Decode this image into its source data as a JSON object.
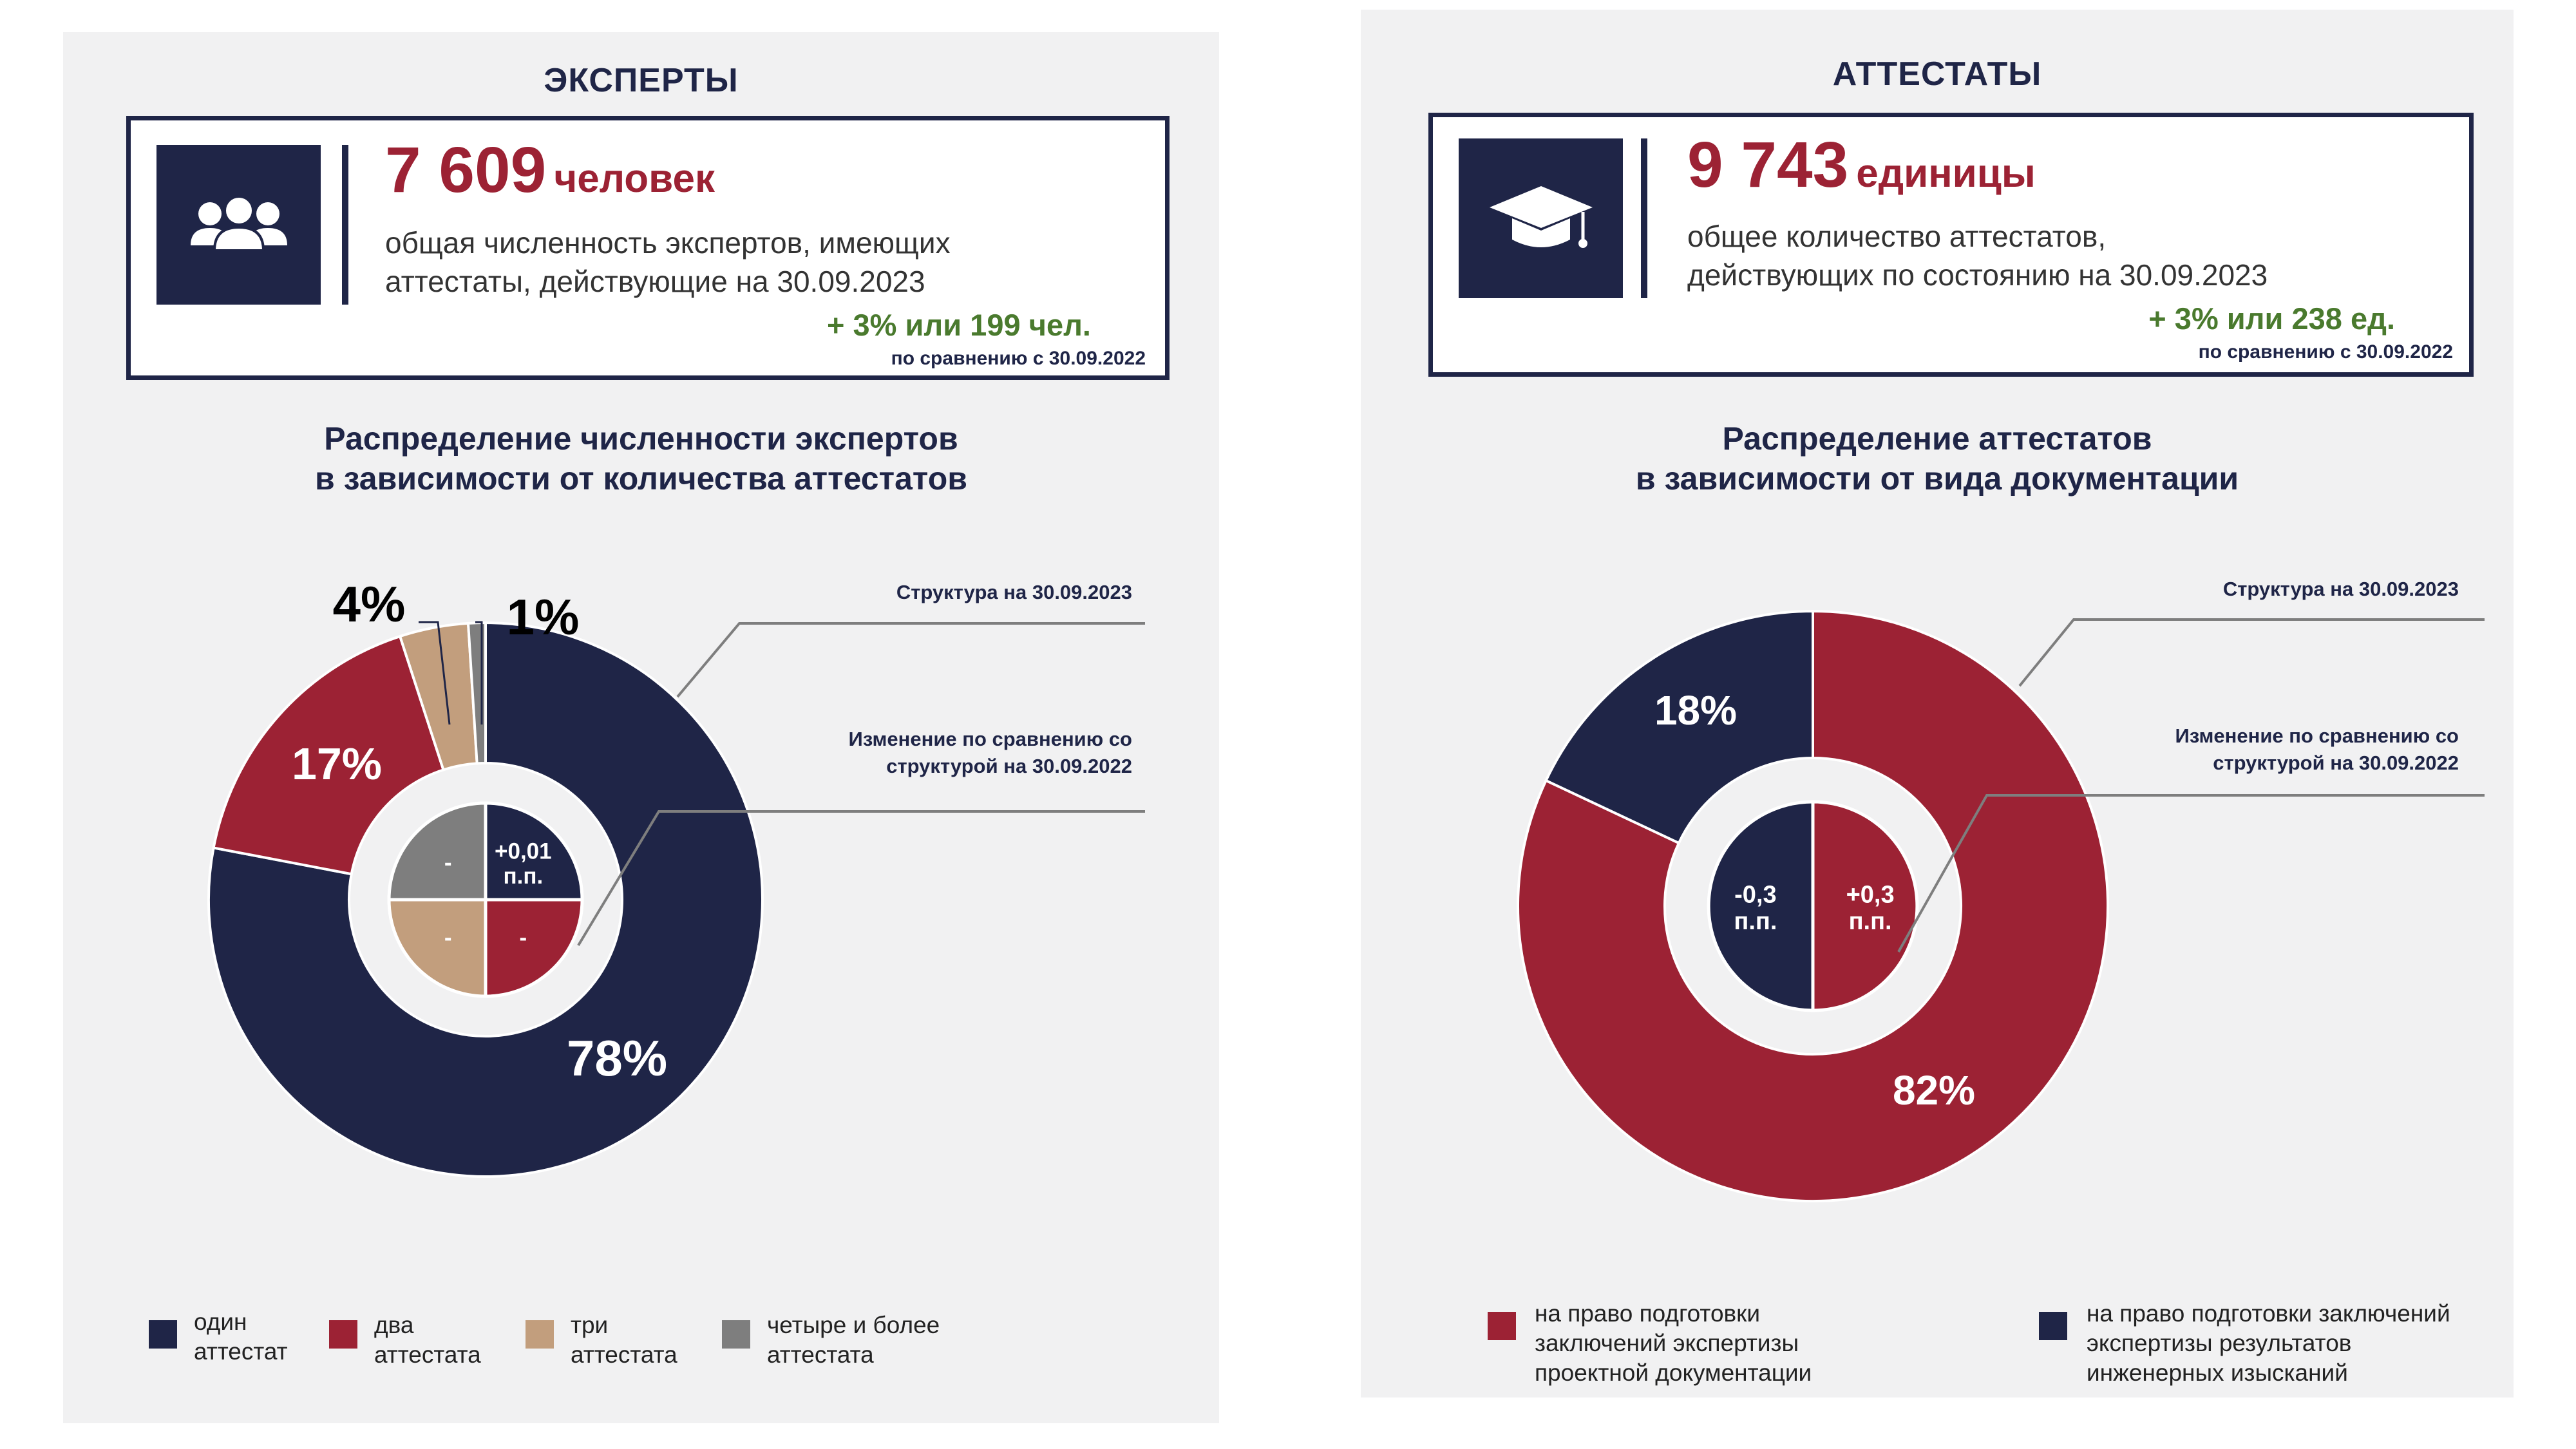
{
  "colors": {
    "navy": "#1f2547",
    "crimson": "#9c2234",
    "tan": "#c29e7d",
    "gray": "#7e7e7e",
    "green": "#4a7a2e",
    "panel_bg": "#f1f1f2"
  },
  "left": {
    "heading": "ЭКСПЕРТЫ",
    "icon": "people-group-icon",
    "stat_number": "7 609",
    "stat_unit": "человек",
    "stat_desc_line1": "общая численность экспертов, имеющих",
    "stat_desc_line2": "аттестаты, действующие на 30.09.2023",
    "stat_change": "+ 3% или 199 чел.",
    "stat_compare": "по сравнению  с 30.09.2022",
    "chart_title_line1": "Распределение численности экспертов",
    "chart_title_line2": "в зависимости от количества аттестатов",
    "callout_structure": "Структура на 30.09.2023",
    "callout_change_line1": "Изменение по сравнению со",
    "callout_change_line2": "структурой на 30.09.2022",
    "legend": [
      {
        "line1": "один",
        "line2": "аттестат",
        "color": "#1f2547"
      },
      {
        "line1": "два",
        "line2": "аттестата",
        "color": "#9c2234"
      },
      {
        "line1": "три",
        "line2": "аттестата",
        "color": "#c29e7d"
      },
      {
        "line1": "четыре и более",
        "line2": "аттестата",
        "color": "#7e7e7e"
      }
    ]
  },
  "right": {
    "heading": "АТТЕСТАТЫ",
    "icon": "graduation-cap-icon",
    "stat_number": "9 743",
    "stat_unit": "единицы",
    "stat_desc_line1": "общее количество аттестатов,",
    "stat_desc_line2": "действующих по состоянию на 30.09.2023",
    "stat_change": "+ 3% или 238 ед.",
    "stat_compare": "по сравнению  с 30.09.2022",
    "chart_title_line1": "Распределение аттестатов",
    "chart_title_line2": "в зависимости от вида документации",
    "callout_structure": "Структура на 30.09.2023",
    "callout_change_line1": "Изменение  по сравнению со",
    "callout_change_line2": "структурой на 30.09.2022",
    "legend": [
      {
        "line1": "на право подготовки",
        "line2": "заключений экспертизы",
        "line3": "проектной документации",
        "color": "#9c2234"
      },
      {
        "line1": "на право подготовки заключений",
        "line2": "экспертизы результатов",
        "line3": "инженерных изысканий",
        "color": "#1f2547"
      }
    ]
  },
  "chart_data": [
    {
      "type": "pie",
      "title": "Распределение численности экспертов в зависимости от количества аттестатов",
      "categories": [
        "один аттестат",
        "два аттестата",
        "три аттестата",
        "четыре и более аттестата"
      ],
      "values": [
        78,
        17,
        4,
        1
      ],
      "labels": [
        "78%",
        "17%",
        "4%",
        "1%"
      ],
      "colors": [
        "#1f2547",
        "#9c2234",
        "#c29e7d",
        "#7e7e7e"
      ],
      "inner_change_labels": [
        "+0,01 п.п.",
        "-",
        "-",
        "-"
      ]
    },
    {
      "type": "pie",
      "title": "Распределение аттестатов в зависимости от вида документации",
      "categories": [
        "на право подготовки заключений экспертизы проектной документации",
        "на право подготовки заключений экспертизы результатов инженерных изысканий"
      ],
      "values": [
        82,
        18
      ],
      "labels": [
        "82%",
        "18%"
      ],
      "colors": [
        "#9c2234",
        "#1f2547"
      ],
      "inner_change_labels": [
        "+0,3 п.п.",
        "-0,3 п.п."
      ]
    }
  ]
}
